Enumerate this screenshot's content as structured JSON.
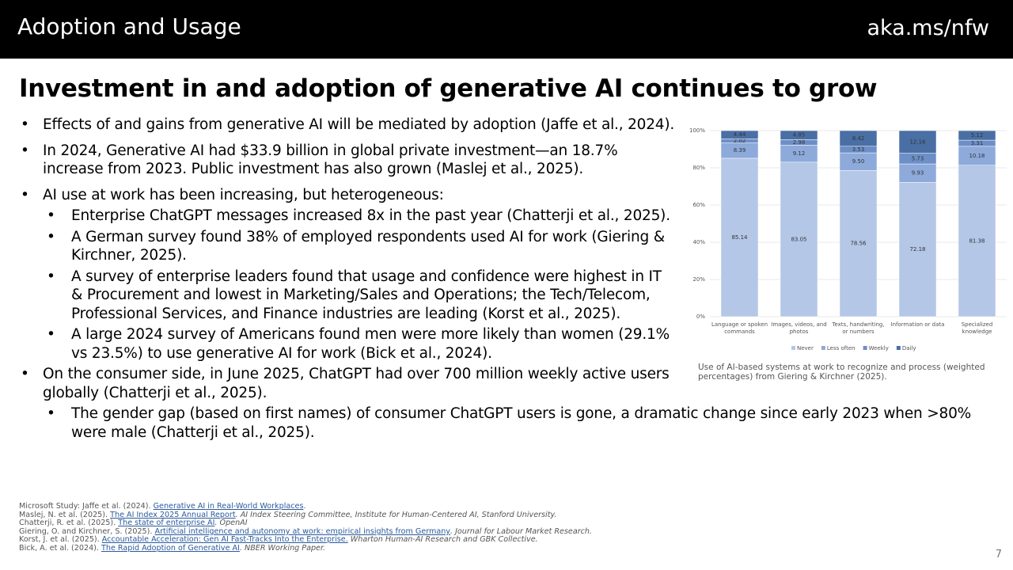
{
  "header": {
    "title": "Adoption and Usage",
    "link": "aka.ms/nfw"
  },
  "title": "Investment in and adoption of generative AI continues to grow",
  "bullets": [
    {
      "level": 1,
      "text": "Effects of and gains from generative AI will be mediated by adoption (Jaffe et al., 2024)."
    },
    {
      "level": 1,
      "text": "In 2024, Generative AI had $33.9 billion in global private investment—an 18.7% increase from 2023. Public investment has also grown (Maslej et al., 2025)."
    },
    {
      "level": 1,
      "text": "AI use at work has been increasing, but heterogeneous:"
    },
    {
      "level": 2,
      "text": "Enterprise ChatGPT messages increased 8x in the past year (Chatterji et al., 2025)."
    },
    {
      "level": 2,
      "text": "A German survey found 38% of employed respondents used AI for work (Giering & Kirchner, 2025)."
    },
    {
      "level": 2,
      "text": "A survey of enterprise leaders found that usage and confidence were highest in IT & Procurement and lowest in Marketing/Sales and Operations; the Tech/Telecom, Professional Services, and Finance industries are leading (Korst et al., 2025)."
    },
    {
      "level": 2,
      "text": "A large 2024 survey of Americans found men were more likely than women (29.1% vs 23.5%) to use generative AI for work (Bick et al., 2024)."
    },
    {
      "level": 1,
      "text": "On the consumer side, in June 2025, ChatGPT had over 700 million weekly active users globally (Chatterji et al., 2025)."
    },
    {
      "level": 2,
      "text": "The gender gap (based on first names) of consumer ChatGPT users is gone, a dramatic change since early 2023 when >80% were male (Chatterji et al., 2025)."
    }
  ],
  "chart_data": {
    "type": "stacked_bar",
    "categories": [
      "Language or spoken commands",
      "Images, videos, and photos",
      "Texts, handwriting, or numbers",
      "Information or data",
      "Specialized knowledge"
    ],
    "series": [
      {
        "name": "Never",
        "color": "#b4c7e7",
        "values": [
          85.14,
          83.05,
          78.56,
          72.18,
          81.38
        ],
        "value_labels": [
          "85.14",
          "83.05",
          "78.56",
          "72.18",
          "81.38"
        ]
      },
      {
        "name": "Less often",
        "color": "#8eaadb",
        "values": [
          8.39,
          9.12,
          9.5,
          9.93,
          10.18
        ],
        "value_labels": [
          "8.39",
          "9.12",
          "9.50",
          "9.93",
          "10.18"
        ]
      },
      {
        "name": "Weekly",
        "color": "#6d8fc8",
        "values": [
          2.02,
          2.98,
          3.53,
          5.73,
          3.31
        ],
        "value_labels": [
          "2.02",
          "2.98",
          "3.53",
          "5.73",
          "3.31"
        ]
      },
      {
        "name": "Daily",
        "color": "#4a6fa5",
        "values": [
          4.44,
          4.85,
          8.42,
          12.16,
          5.12
        ],
        "value_labels": [
          "4.44",
          "4.85",
          "8.42",
          "12.16",
          "5.12"
        ]
      }
    ],
    "ylim": [
      0,
      100
    ],
    "yticks": [
      {
        "value": 0,
        "label": "0%"
      },
      {
        "value": 20,
        "label": "20%"
      },
      {
        "value": 40,
        "label": "40%"
      },
      {
        "value": 60,
        "label": "60%"
      },
      {
        "value": 80,
        "label": "80%"
      },
      {
        "value": 100,
        "label": "100%"
      }
    ],
    "grid": true,
    "legend": "bottom"
  },
  "caption": "Use of AI-based systems at work to recognize and process (weighted percentages) from Giering & Kirchner (2025).",
  "references": [
    {
      "pre": "Microsoft Study: Jaffe et al. (2024). ",
      "link": "Generative AI in Real-World Workplaces",
      "post": "."
    },
    {
      "pre": "Maslej, N. et al. (2025). ",
      "link": "The AI Index 2025 Annual Report",
      "post": ". AI Index Steering Committee, Institute for Human-Centered AI, Stanford University."
    },
    {
      "pre": "Chatterji, R. et al. (2025). ",
      "link": "The state of enterprise AI",
      "post": ". OpenAI"
    },
    {
      "pre": "Giering, O. and Kirchner, S. (2025). ",
      "link": "Artificial intelligence and autonomy at work: empirical insights from Germany",
      "post": ". Journal for Labour Market Research."
    },
    {
      "pre": "Korst, J. et al. (2025). ",
      "link": "Accountable Acceleration: Gen AI Fast-Tracks Into the Enterprise.",
      "post": " Wharton Human-AI Research and GBK Collective."
    },
    {
      "pre": "Bick, A. et al. (2024). ",
      "link": "The Rapid Adoption of Generative AI",
      "post": ". NBER Working Paper."
    }
  ],
  "page_number": "7"
}
